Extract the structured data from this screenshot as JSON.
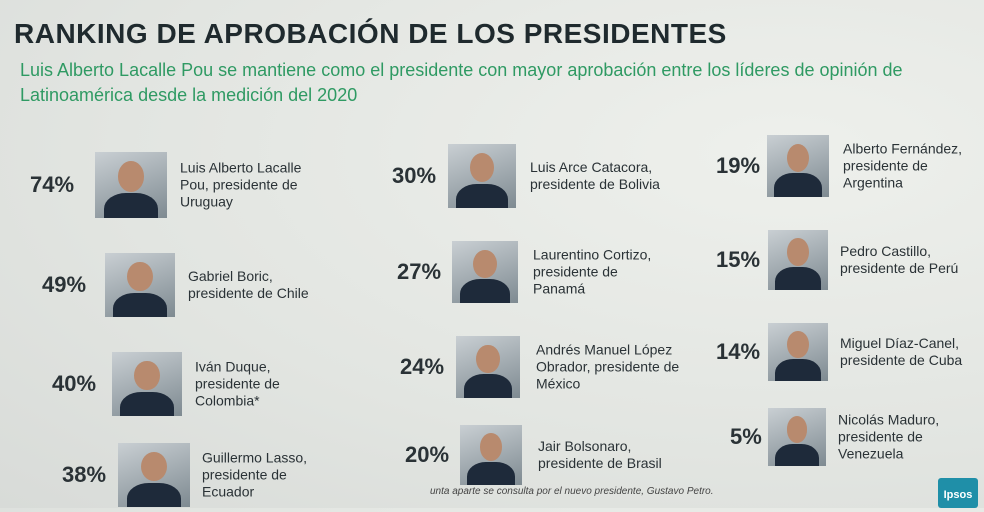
{
  "header": {
    "title": "RANKING DE APROBACIÓN DE LOS PRESIDENTES",
    "subtitle": "Luis Alberto Lacalle Pou se mantiene como el presidente con mayor aprobación entre los líderes de opinión de Latinoamérica desde la medición del 2020"
  },
  "items": [
    {
      "percent": "74%",
      "name": "Luis Alberto Lacalle Pou, presidente de Uruguay"
    },
    {
      "percent": "49%",
      "name": "Gabriel Boric, presidente de Chile"
    },
    {
      "percent": "40%",
      "name": "Iván Duque, presidente de Colombia*"
    },
    {
      "percent": "38%",
      "name": "Guillermo Lasso, presidente de Ecuador"
    },
    {
      "percent": "30%",
      "name": "Luis Arce Catacora, presidente de Bolivia"
    },
    {
      "percent": "27%",
      "name": "Laurentino Cortizo, presidente de Panamá"
    },
    {
      "percent": "24%",
      "name": "Andrés Manuel López Obrador, presidente de México"
    },
    {
      "percent": "20%",
      "name": "Jair Bolsonaro, presidente de Brasil"
    },
    {
      "percent": "19%",
      "name": "Alberto Fernández, presidente de Argentina"
    },
    {
      "percent": "15%",
      "name": "Pedro Castillo, presidente de Perú"
    },
    {
      "percent": "14%",
      "name": "Miguel Díaz-Canel, presidente de Cuba"
    },
    {
      "percent": "5%",
      "name": "Nicolás Maduro, presidente de Venezuela"
    }
  ],
  "footer": {
    "note": "unta aparte se consulta por el nuevo presidente, Gustavo Petro.",
    "logo": "Ipsos"
  }
}
